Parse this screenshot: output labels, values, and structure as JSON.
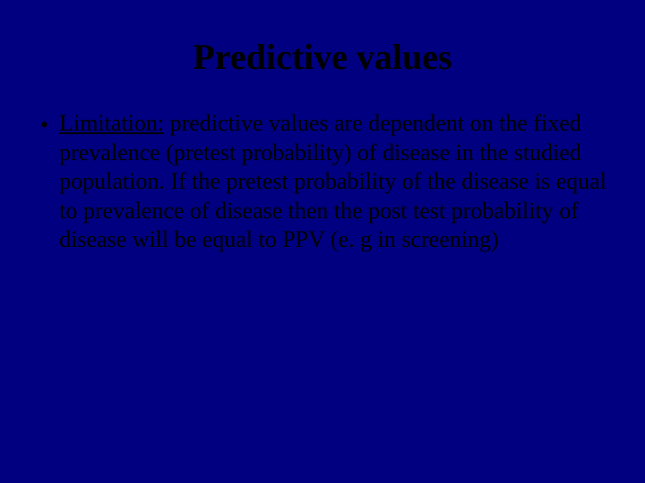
{
  "slide": {
    "title": "Predictive values",
    "bullet": {
      "marker": "•",
      "label": "Limitation:",
      "text": " predictive values are dependent on the fixed prevalence (pretest probability) of disease in the studied population. If the pretest probability of the disease is equal to prevalence of disease then the post test probability of disease will be equal to PPV (e. g in screening)"
    },
    "colors": {
      "background": "#000080",
      "title_color": "#000000",
      "text_color": "#000000"
    },
    "typography": {
      "title_fontsize": 40,
      "title_weight": "bold",
      "body_fontsize": 26,
      "font_family": "Times New Roman"
    }
  }
}
